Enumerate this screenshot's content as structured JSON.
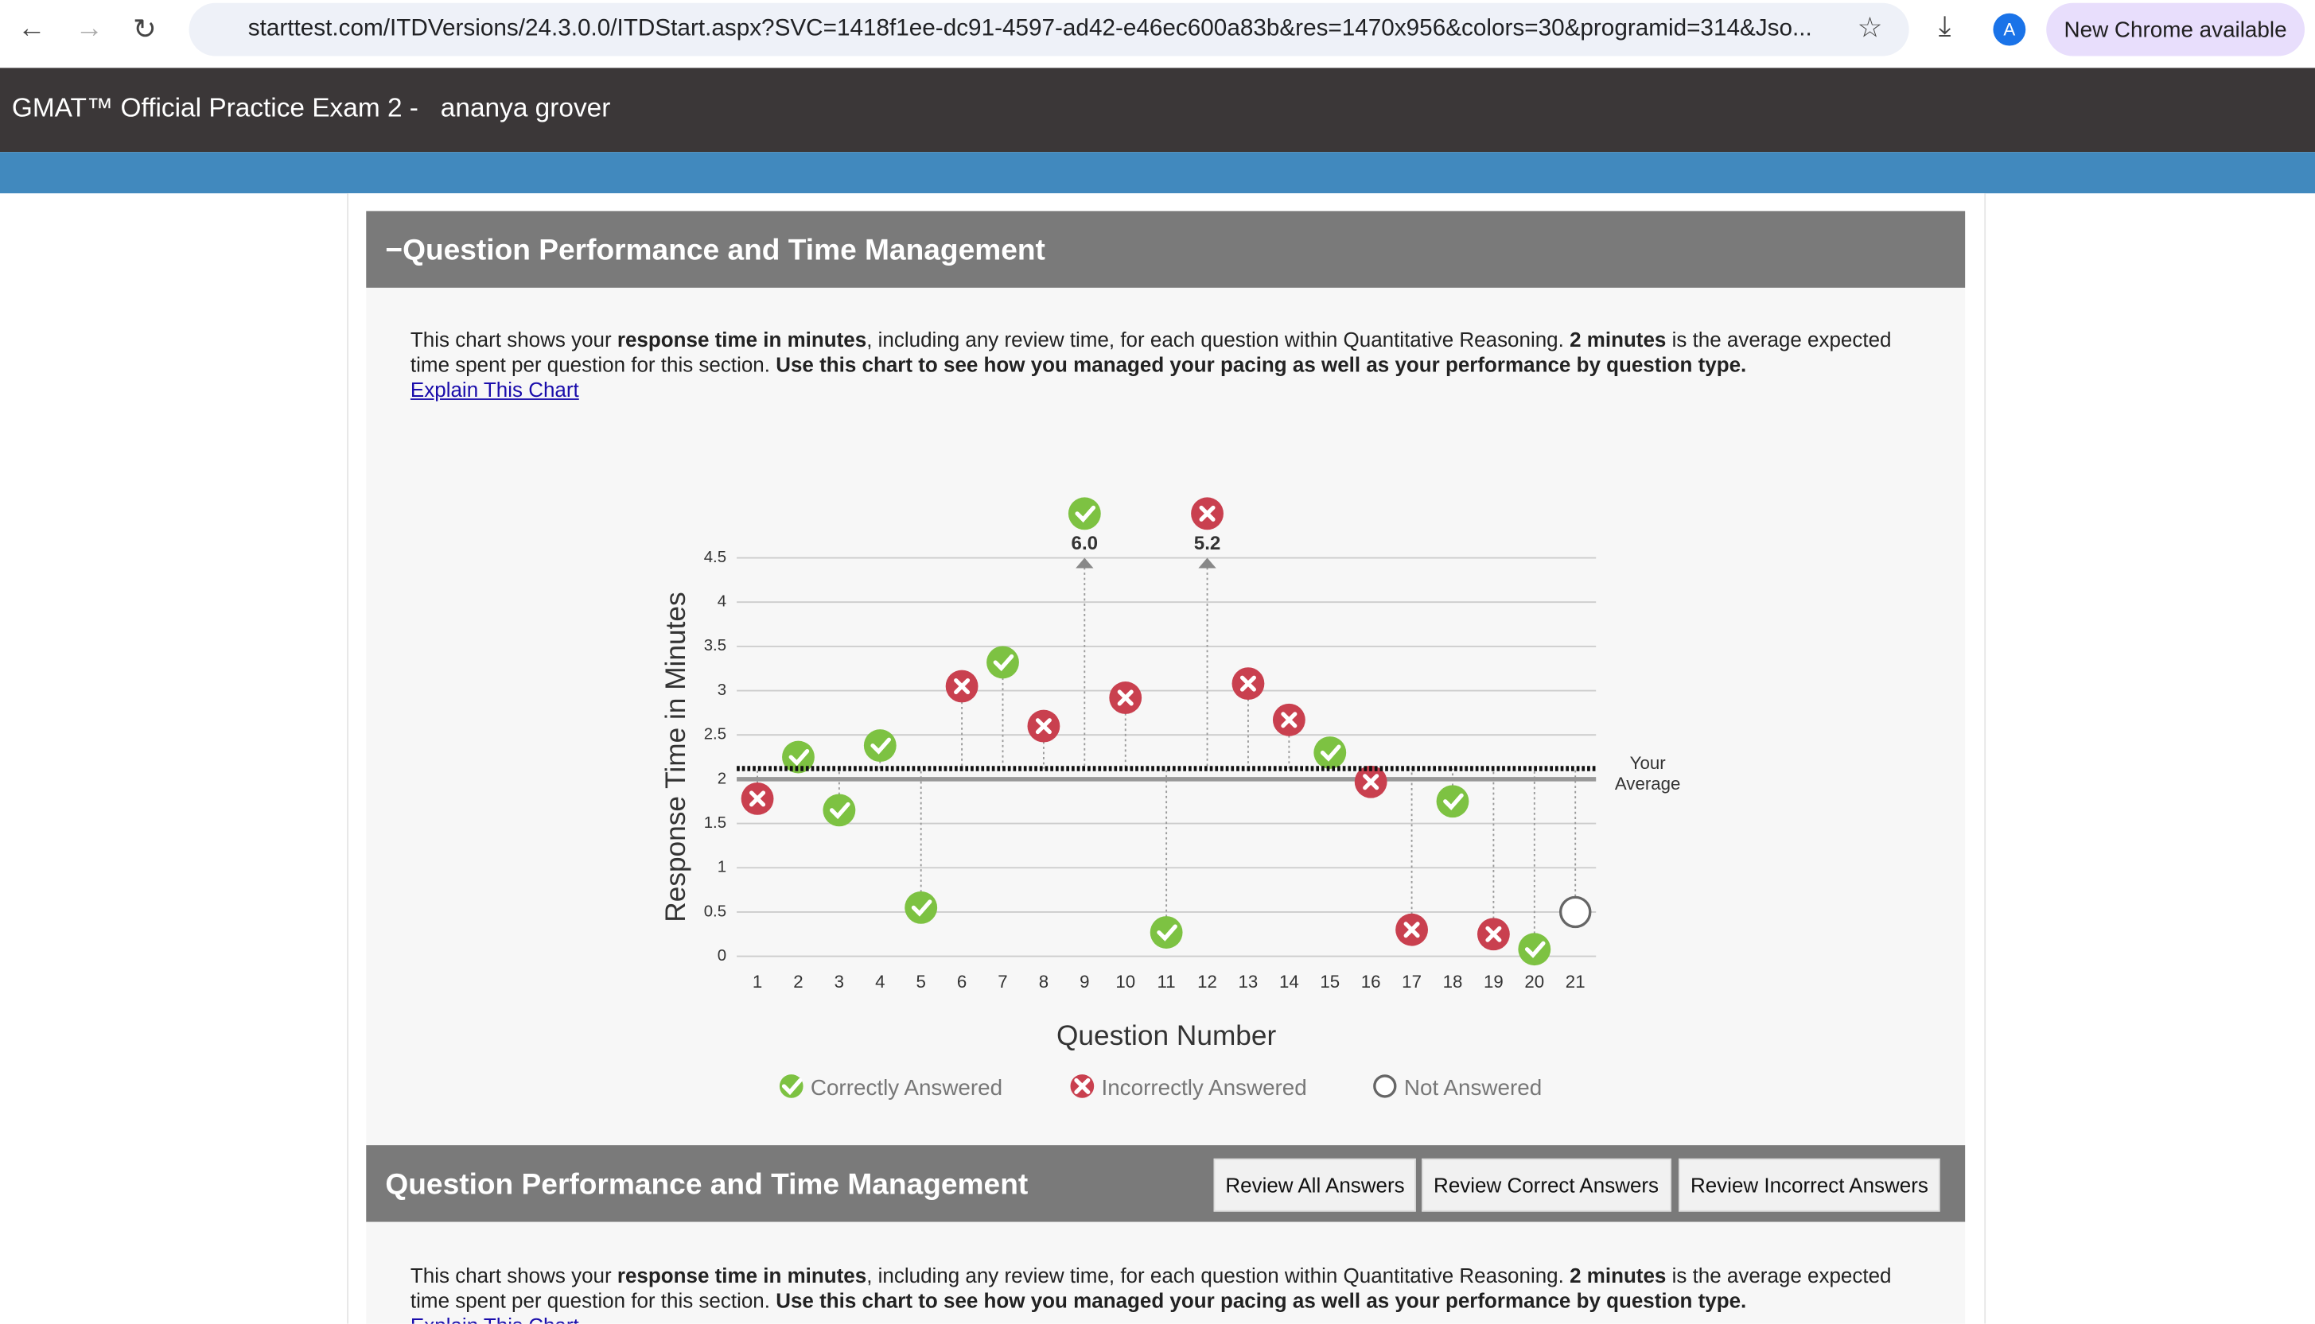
{
  "browser": {
    "url": "starttest.com/ITDVersions/24.3.0.0/ITDStart.aspx?SVC=1418f1ee-dc91-4597-ad42-e46ec600a83b&res=1470x956&colors=30&programid=314&Jso...",
    "avatar": "A",
    "update": "New Chrome available"
  },
  "header": {
    "title": "GMAT™ Official Practice Exam 2 -",
    "user": "ananya grover"
  },
  "panel1": {
    "title": "Question Performance and Time Management",
    "paragraph": [
      {
        "text": "This chart shows your ",
        "bold": false
      },
      {
        "text": "response time in minutes",
        "bold": true
      },
      {
        "text": ", including any review time, for each question within Quantitative Reasoning. ",
        "bold": false
      },
      {
        "text": "2 minutes",
        "bold": true
      },
      {
        "text": " is the average expected time spent per question for this section. ",
        "bold": false
      },
      {
        "text": "Use this chart to see how you managed your pacing as well as your performance by question type.",
        "bold": true
      }
    ],
    "link": "Explain This Chart"
  },
  "chart_data": {
    "type": "scatter",
    "y_label": "Response Time in Minutes",
    "x_label": "Question Number",
    "categories": [
      "1",
      "2",
      "3",
      "4",
      "5",
      "6",
      "7",
      "8",
      "9",
      "10",
      "11",
      "12",
      "13",
      "14",
      "15",
      "16",
      "17",
      "18",
      "19",
      "20",
      "21"
    ],
    "series": [
      {
        "name": "Correctly Answered",
        "color": "#7dc242",
        "values": [
          null,
          2.25,
          1.65,
          2.38,
          0.55,
          null,
          3.32,
          null,
          6.0,
          null,
          0.27,
          null,
          null,
          null,
          2.3,
          null,
          null,
          1.75,
          null,
          0.08,
          null
        ],
        "value_labels": [
          null,
          null,
          null,
          null,
          null,
          null,
          null,
          null,
          "6.0",
          null,
          null,
          null,
          null,
          null,
          null,
          null,
          null,
          null,
          null,
          null,
          null
        ]
      },
      {
        "name": "Incorrectly Answered",
        "color": "#c9404f",
        "values": [
          1.78,
          null,
          null,
          null,
          null,
          3.05,
          null,
          2.6,
          null,
          2.92,
          null,
          5.2,
          3.08,
          2.67,
          null,
          1.97,
          0.3,
          null,
          0.25,
          null,
          null
        ],
        "value_labels": [
          null,
          null,
          null,
          null,
          null,
          null,
          null,
          null,
          null,
          null,
          null,
          "5.2",
          null,
          null,
          null,
          null,
          null,
          null,
          null,
          null,
          null
        ]
      },
      {
        "name": "Not Answered",
        "color": "#666666",
        "values": [
          null,
          null,
          null,
          null,
          null,
          null,
          null,
          null,
          null,
          null,
          null,
          null,
          null,
          null,
          null,
          null,
          null,
          null,
          null,
          null,
          0.5
        ]
      }
    ],
    "ylim": [
      0,
      4.5
    ],
    "yticks": [
      0,
      0.5,
      1,
      1.5,
      2,
      2.5,
      3,
      3.5,
      4,
      4.5
    ],
    "grid": true,
    "expected": 2,
    "average": 2.12,
    "average_label": "Your Average"
  },
  "panel2": {
    "title": "Question Performance and Time Management",
    "buttons": [
      "Review All Answers",
      "Review Correct Answers",
      "Review Incorrect Answers"
    ],
    "paragraph": [
      {
        "text": "This chart shows your ",
        "bold": false
      },
      {
        "text": "response time in minutes",
        "bold": true
      },
      {
        "text": ", including any review time, for each question within Quantitative Reasoning. ",
        "bold": false
      },
      {
        "text": "2 minutes",
        "bold": true
      },
      {
        "text": " is the average expected time spent per question for this section. ",
        "bold": false
      },
      {
        "text": "Use this chart to see how you managed your pacing as well as your performance by question type.",
        "bold": true
      }
    ],
    "link": "Explain This Chart"
  }
}
